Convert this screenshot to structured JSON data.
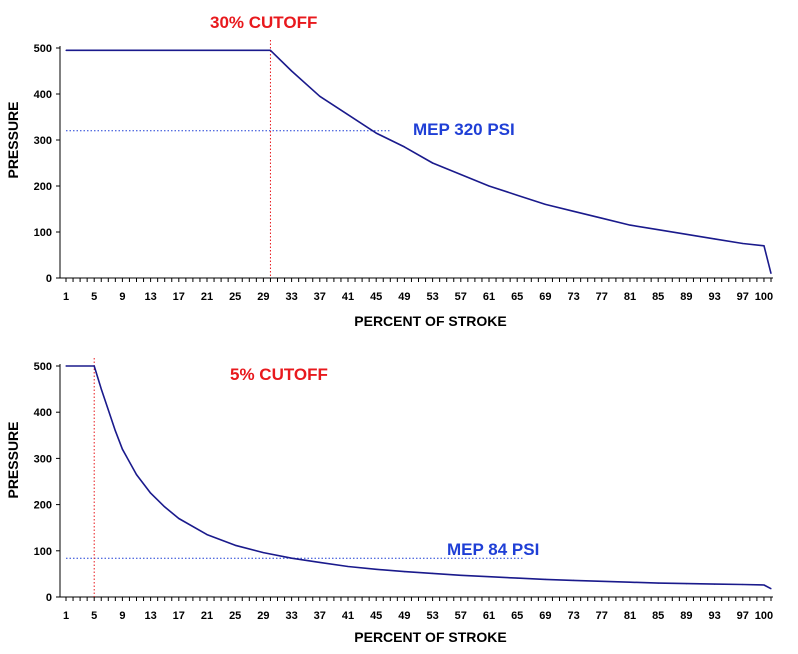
{
  "colors": {
    "curve": "#1a1a8c",
    "cutoff": "#e8191d",
    "mep": "#1f3fd6",
    "axis": "#000000"
  },
  "chart_data": [
    {
      "type": "line",
      "title": "",
      "xlabel": "PERCENT OF STROKE",
      "ylabel": "PRESSURE",
      "xlim": [
        1,
        101
      ],
      "ylim": [
        0,
        500
      ],
      "x_tick_labels": [
        "1",
        "5",
        "9",
        "13",
        "17",
        "21",
        "25",
        "29",
        "33",
        "37",
        "41",
        "45",
        "49",
        "53",
        "57",
        "61",
        "65",
        "69",
        "73",
        "77",
        "81",
        "85",
        "89",
        "93",
        "97",
        "100"
      ],
      "y_tick_labels": [
        "0",
        "100",
        "200",
        "300",
        "400",
        "500"
      ],
      "cutoff_percent": 30,
      "cutoff_label": "30% CUTOFF",
      "mep_value": 320,
      "mep_label": "MEP  320 PSI",
      "mep_line_x_end": 47,
      "series": [
        {
          "name": "Pressure",
          "x": [
            1,
            30,
            33,
            37,
            41,
            45,
            49,
            53,
            57,
            61,
            65,
            69,
            73,
            77,
            81,
            85,
            89,
            93,
            97,
            100,
            101
          ],
          "y": [
            495,
            495,
            450,
            395,
            355,
            315,
            285,
            250,
            225,
            200,
            180,
            160,
            145,
            130,
            115,
            105,
            95,
            85,
            75,
            70,
            10
          ]
        }
      ]
    },
    {
      "type": "line",
      "title": "",
      "xlabel": "PERCENT OF STROKE",
      "ylabel": "PRESSURE",
      "xlim": [
        1,
        101
      ],
      "ylim": [
        0,
        500
      ],
      "x_tick_labels": [
        "1",
        "5",
        "9",
        "13",
        "17",
        "21",
        "25",
        "29",
        "33",
        "37",
        "41",
        "45",
        "49",
        "53",
        "57",
        "61",
        "65",
        "69",
        "73",
        "77",
        "81",
        "85",
        "89",
        "93",
        "97",
        "100"
      ],
      "y_tick_labels": [
        "0",
        "100",
        "200",
        "300",
        "400",
        "500"
      ],
      "cutoff_percent": 5,
      "cutoff_label": "5% CUTOFF",
      "mep_value": 84,
      "mep_label": "MEP  84 PSI",
      "mep_line_x_end": 66,
      "series": [
        {
          "name": "Pressure",
          "x": [
            1,
            5,
            6,
            7,
            8,
            9,
            11,
            13,
            15,
            17,
            21,
            25,
            29,
            33,
            37,
            41,
            45,
            49,
            53,
            57,
            61,
            65,
            69,
            73,
            77,
            81,
            85,
            89,
            93,
            97,
            100,
            101
          ],
          "y": [
            500,
            500,
            450,
            405,
            360,
            320,
            265,
            225,
            195,
            170,
            135,
            112,
            96,
            84,
            75,
            66,
            60,
            55,
            51,
            47,
            44,
            41,
            38,
            36,
            34,
            32,
            30,
            29,
            28,
            27,
            26,
            18
          ]
        }
      ]
    }
  ]
}
